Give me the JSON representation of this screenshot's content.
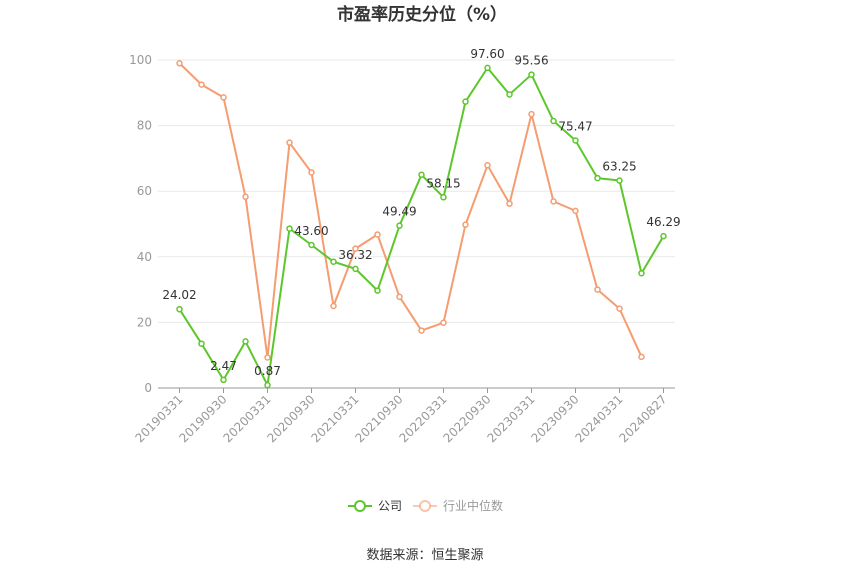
{
  "chart_data": {
    "type": "line",
    "title": "市盈率历史分位（%）",
    "ylim": [
      0,
      100
    ],
    "yticks": [
      0,
      20,
      40,
      60,
      80,
      100
    ],
    "x": [
      "20190331",
      "20190630",
      "20190930",
      "20191231",
      "20200331",
      "20200630",
      "20200930",
      "20201231",
      "20210331",
      "20210630",
      "20210930",
      "20211231",
      "20220331",
      "20220630",
      "20220930",
      "20221231",
      "20230331",
      "20230630",
      "20230930",
      "20231231",
      "20240331",
      "20240630",
      "20240827"
    ],
    "xtick_labels": [
      "20190331",
      "20190930",
      "20200331",
      "20200930",
      "20210331",
      "20210930",
      "20220331",
      "20220930",
      "20230331",
      "20230930",
      "20240331",
      "20240827"
    ],
    "xtick_indices": [
      0,
      2,
      4,
      6,
      8,
      10,
      12,
      14,
      16,
      18,
      20,
      22
    ],
    "series": [
      {
        "name": "公司",
        "color": "#5cc72b",
        "values": [
          24.02,
          13.5,
          2.47,
          14.2,
          0.87,
          48.6,
          43.6,
          38.5,
          36.32,
          29.7,
          49.49,
          65.0,
          58.15,
          87.3,
          97.6,
          89.5,
          95.56,
          81.4,
          75.47,
          64.0,
          63.25,
          35.0,
          46.29
        ],
        "labels": {
          "0": "24.02",
          "2": "2.47",
          "4": "0.87",
          "6": "43.60",
          "8": "36.32",
          "10": "49.49",
          "12": "58.15",
          "14": "97.60",
          "16": "95.56",
          "18": "75.47",
          "20": "63.25",
          "22": "46.29"
        }
      },
      {
        "name": "行业中位数",
        "color": "#f59c70",
        "values": [
          99.0,
          92.5,
          88.6,
          58.3,
          9.3,
          74.8,
          65.7,
          25.0,
          42.5,
          46.8,
          27.8,
          17.5,
          19.9,
          49.8,
          67.9,
          56.2,
          83.5,
          56.9,
          54.0,
          30.0,
          24.2,
          9.5,
          null
        ]
      }
    ],
    "legend_position": "bottom-center",
    "grid": true,
    "source": "数据来源：恒生聚源"
  }
}
